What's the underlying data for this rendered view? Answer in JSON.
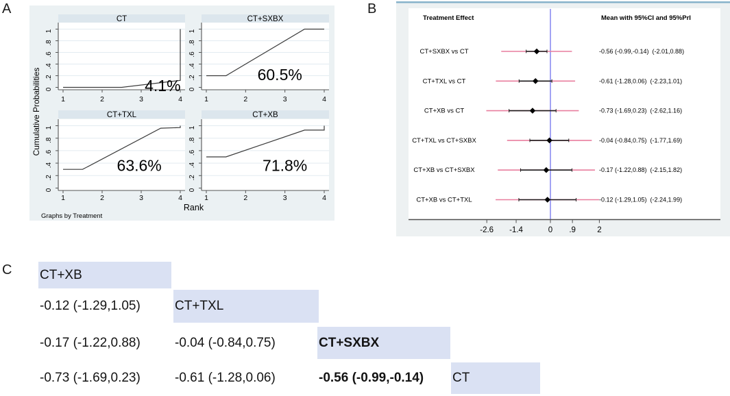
{
  "chart_data": [
    {
      "panel_label": "A",
      "type": "line",
      "xlabel": "Rank",
      "ylabel": "Cumulative Probabilities",
      "footnote": "Graphs by Treatment",
      "xlim": [
        1,
        4
      ],
      "ylim": [
        0,
        1
      ],
      "x_ticks": [
        "1",
        "2",
        "3",
        "4"
      ],
      "y_ticks": [
        {
          "v": 0.0,
          "label": "0"
        },
        {
          "v": 0.2,
          "label": ".2"
        },
        {
          "v": 0.4,
          "label": ".4"
        },
        {
          "v": 0.6,
          "label": ".6"
        },
        {
          "v": 0.8,
          "label": ".8"
        },
        {
          "v": 1.0,
          "label": "1"
        }
      ],
      "grid": true,
      "subplots": [
        {
          "title": "CT",
          "sucra_label": "4.1%",
          "x": [
            1,
            2.5,
            4,
            4
          ],
          "y": [
            0,
            0,
            0.12,
            1
          ],
          "label_at": [
            3.55,
            0.03
          ]
        },
        {
          "title": "CT+SXBX",
          "sucra_label": "60.5%",
          "x": [
            1,
            1.5,
            3.5,
            4
          ],
          "y": [
            0.2,
            0.2,
            1,
            1
          ],
          "label_at": [
            2.87,
            0.22
          ]
        },
        {
          "title": "CT+TXL",
          "sucra_label": "63.6%",
          "x": [
            1,
            1.5,
            3.5,
            4,
            4
          ],
          "y": [
            0.3,
            0.3,
            0.96,
            0.97,
            1
          ],
          "label_at": [
            2.95,
            0.36
          ]
        },
        {
          "title": "CT+XB",
          "sucra_label": "71.8%",
          "x": [
            1,
            1.5,
            3.5,
            4,
            4
          ],
          "y": [
            0.5,
            0.5,
            0.93,
            0.93,
            1
          ],
          "label_at": [
            3.0,
            0.36
          ]
        }
      ]
    },
    {
      "panel_label": "B",
      "type": "forest",
      "header_left": "Treatment Effect",
      "header_right": "Mean with 95%CI and 95%PrI",
      "zero_line": 0,
      "xlim": [
        -3.4,
        3.0
      ],
      "x_ticks": [
        {
          "v": -2.6,
          "label": "-2.6"
        },
        {
          "v": -1.4,
          "label": "-1.4"
        },
        {
          "v": 0,
          "label": "0"
        },
        {
          "v": 0.9,
          "label": ".9"
        },
        {
          "v": 2,
          "label": "2"
        }
      ],
      "rows": [
        {
          "label": "CT+SXBX vs CT",
          "mean": -0.56,
          "ci": [
            -0.99,
            -0.14
          ],
          "pri": [
            -2.01,
            0.88
          ],
          "value_text": "-0.56 (-0.99,-0.14)  (-2.01,0.88)"
        },
        {
          "label": "CT+TXL vs CT",
          "mean": -0.61,
          "ci": [
            -1.28,
            0.06
          ],
          "pri": [
            -2.23,
            1.01
          ],
          "value_text": "-0.61 (-1.28,0.06)  (-2.23,1.01)"
        },
        {
          "label": "CT+XB vs CT",
          "mean": -0.73,
          "ci": [
            -1.69,
            0.23
          ],
          "pri": [
            -2.62,
            1.16
          ],
          "value_text": "-0.73 (-1.69,0.23)  (-2.62,1.16)"
        },
        {
          "label": "CT+TXL vs CT+SXBX",
          "mean": -0.04,
          "ci": [
            -0.84,
            0.75
          ],
          "pri": [
            -1.77,
            1.69
          ],
          "value_text": "-0.04 (-0.84,0.75)  (-1.77,1.69)"
        },
        {
          "label": "CT+XB vs CT+SXBX",
          "mean": -0.17,
          "ci": [
            -1.22,
            0.88
          ],
          "pri": [
            -2.15,
            1.82
          ],
          "value_text": "-0.17 (-1.22,0.88)  (-2.15,1.82)"
        },
        {
          "label": "CT+XB vs CT+TXL",
          "mean": -0.12,
          "ci": [
            -1.29,
            1.05
          ],
          "pri": [
            -2.24,
            1.99
          ],
          "value_text": "-0.12 (-1.29,1.05)  (-2.24,1.99)"
        }
      ],
      "colors": {
        "pri_line": "#e87d9e",
        "ci_line": "#1c1c1c",
        "mean_marker": "#000000",
        "zero_line": "#7a7cf0",
        "axis": "#4f4f4f",
        "figure_bg": "#edf1f2",
        "top_rule": "#87b2ca"
      }
    },
    {
      "panel_label": "C",
      "type": "table",
      "highlight_color": "#dae1f3",
      "rows": [
        [
          {
            "text": "CT+XB",
            "highlight": true,
            "bold": false
          }
        ],
        [
          {
            "text": "-0.12 (-1.29,1.05)",
            "highlight": false,
            "bold": false
          },
          {
            "text": "CT+TXL",
            "highlight": true,
            "bold": false
          }
        ],
        [
          {
            "text": "-0.17 (-1.22,0.88)",
            "highlight": false,
            "bold": false
          },
          {
            "text": "-0.04 (-0.84,0.75)",
            "highlight": false,
            "bold": false
          },
          {
            "text": "CT+SXBX",
            "highlight": true,
            "bold": true
          }
        ],
        [
          {
            "text": "-0.73 (-1.69,0.23)",
            "highlight": false,
            "bold": false
          },
          {
            "text": "-0.61 (-1.28,0.06)",
            "highlight": false,
            "bold": false
          },
          {
            "text": "-0.56 (-0.99,-0.14)",
            "highlight": false,
            "bold": true
          },
          {
            "text": "CT",
            "highlight": true,
            "bold": false
          }
        ]
      ]
    }
  ],
  "panel_a_colors": {
    "figure_bg": "#ebf1f3",
    "title_bar": "#dce6ed",
    "plot_bg": "#ffffff",
    "gridline": "#e2ebf1",
    "axis": "#555555",
    "series": "#3a3a3a"
  }
}
